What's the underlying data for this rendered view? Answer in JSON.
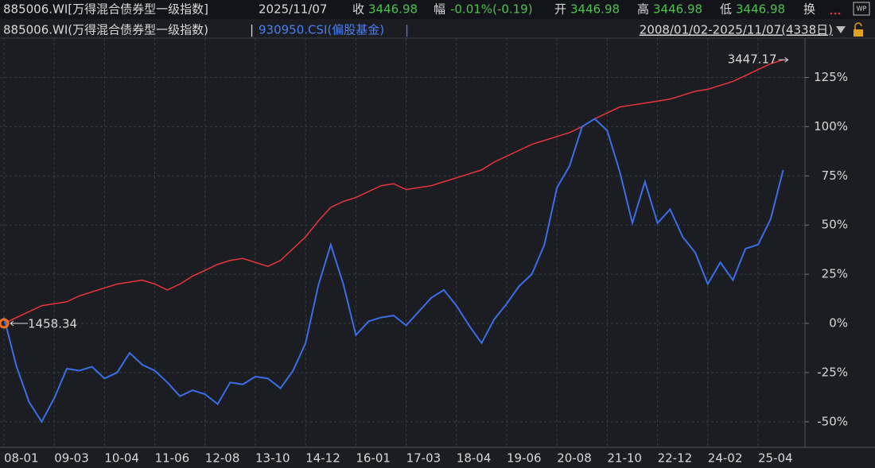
{
  "header": {
    "name": "885006.WI[万得混合债券型一级指数]",
    "date": "2025/11/07",
    "close_label": "收",
    "close": "3446.98",
    "change_label": "幅",
    "change": "-0.01%(-0.19)",
    "open_label": "开",
    "open": "3446.98",
    "high_label": "高",
    "high": "3446.98",
    "low_label": "低",
    "low": "3446.98",
    "turnover_label": "换",
    "icon": "WP"
  },
  "legend_bar": {
    "range": "2008/01/02-2025/11/07(4338日)",
    "separator": "|"
  },
  "chart_data": {
    "type": "line",
    "categories": [
      "08-01",
      null,
      null,
      null,
      "09-03",
      null,
      null,
      null,
      "10-04",
      null,
      null,
      null,
      "11-06",
      null,
      null,
      null,
      "12-08",
      null,
      null,
      null,
      "13-10",
      null,
      null,
      null,
      "14-12",
      null,
      null,
      null,
      "16-01",
      null,
      null,
      null,
      "17-03",
      null,
      null,
      null,
      "18-04",
      null,
      null,
      null,
      "19-06",
      null,
      null,
      null,
      "20-08",
      null,
      null,
      null,
      "21-10",
      null,
      null,
      null,
      "22-12",
      null,
      null,
      null,
      "24-02",
      null,
      null,
      null,
      "25-04",
      null,
      null
    ],
    "series": [
      {
        "name": "885006.WI(万得混合债券型一级指数)",
        "color": "#e8363a",
        "values": [
          0,
          3,
          6,
          9,
          10,
          11,
          14,
          16,
          18,
          20,
          21,
          22,
          20,
          17,
          20,
          24,
          27,
          30,
          32,
          33,
          31,
          29,
          32,
          38,
          44,
          52,
          59,
          62,
          64,
          67,
          70,
          71,
          68,
          69,
          70,
          72,
          74,
          76,
          78,
          82,
          85,
          88,
          91,
          93,
          95,
          97,
          100,
          104,
          107,
          110,
          111,
          112,
          113,
          114,
          116,
          118,
          119,
          121,
          123,
          126,
          129,
          132,
          134
        ]
      },
      {
        "name": "930950.CSI(偏股基金)",
        "color": "#3b6ee6",
        "values": [
          3,
          -22,
          -40,
          -50,
          -38,
          -23,
          -24,
          -22,
          -28,
          -25,
          -15,
          -21,
          -24,
          -30,
          -37,
          -34,
          -36,
          -41,
          -30,
          -31,
          -27,
          -28,
          -33,
          -24,
          -10,
          19,
          40,
          20,
          -6,
          1,
          3,
          4,
          -1,
          6,
          13,
          17,
          9,
          -1,
          -10,
          2,
          10,
          19,
          25,
          40,
          69,
          80,
          100,
          104,
          98,
          77,
          51,
          72,
          51,
          58,
          44,
          36,
          20,
          31,
          22,
          38,
          40,
          53,
          78
        ]
      }
    ],
    "annotations": [
      {
        "text": "3447.17",
        "color": "#e8363a"
      },
      {
        "text": "1458.34",
        "color": "#4fc14f"
      }
    ],
    "ylim": [
      -63,
      145
    ],
    "yticks": [
      {
        "value": 125,
        "label": "125%"
      },
      {
        "value": 100,
        "label": "100%"
      },
      {
        "value": 75,
        "label": "75%"
      },
      {
        "value": 50,
        "label": "50%"
      },
      {
        "value": 25,
        "label": "25%"
      },
      {
        "value": 0,
        "label": "0%"
      },
      {
        "value": -25,
        "label": "-25%"
      },
      {
        "value": -50,
        "label": "-50%"
      }
    ],
    "grid": true
  }
}
